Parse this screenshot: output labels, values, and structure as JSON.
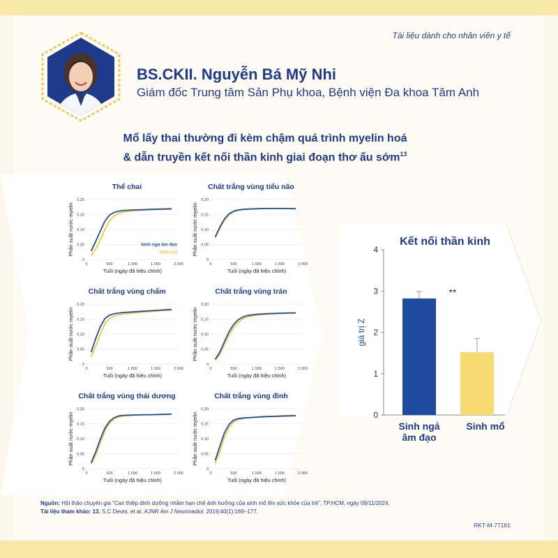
{
  "header": {
    "tagline": "Tài liệu dành cho nhân viên y tế",
    "doctor_name": "BS.CKII. Nguyễn Bá Mỹ Nhi",
    "doctor_role": "Giám đốc Trung tâm Sản Phụ khoa, Bệnh viện Đa khoa Tâm Anh",
    "headline_line1": "Mổ lấy thai thường đi kèm chậm quá trình myelin hoá",
    "headline_line2": "& dẫn truyền kết nối thần kinh giai đoạn thơ ấu sớm",
    "headline_ref": "13"
  },
  "colors": {
    "vaginal": "#1f4e9c",
    "cesarean": "#f0c93a",
    "navy": "#1e3a8a",
    "bar_vaginal": "#1f4aa0",
    "bar_cesarean": "#f7db72",
    "band": "#f8e9a8"
  },
  "chart_data": [
    {
      "type": "line",
      "title": "Thể chai",
      "xlabel": "Tuổi (ngày đã hiệu chỉnh)",
      "ylabel": "Phần suất nước myelin",
      "xlim": [
        0,
        2000
      ],
      "ylim": [
        0,
        0.2
      ],
      "xticks": [
        "0",
        "500",
        "1.000",
        "1.500",
        "2.000"
      ],
      "yticks": [
        "0",
        "0,05",
        "0,10",
        "0,15",
        "0,20"
      ],
      "x": [
        100,
        200,
        300,
        400,
        500,
        600,
        700,
        800,
        1000,
        1200,
        1400,
        1600,
        1850
      ],
      "legend": [
        "Sinh ngả âm đạo",
        "Sinh mổ"
      ],
      "series": [
        {
          "name": "Sinh ngả âm đạo",
          "values": [
            0.028,
            0.06,
            0.095,
            0.128,
            0.148,
            0.157,
            0.161,
            0.163,
            0.165,
            0.166,
            0.167,
            0.168,
            0.169
          ]
        },
        {
          "name": "Sinh mổ",
          "values": [
            0.012,
            0.035,
            0.065,
            0.1,
            0.128,
            0.145,
            0.153,
            0.158,
            0.162,
            0.164,
            0.166,
            0.167,
            0.168
          ]
        }
      ]
    },
    {
      "type": "line",
      "title": "Chất trắng vùng tiểu não",
      "xlabel": "Tuổi (ngày đã hiệu chỉnh)",
      "ylabel": "Phần suất nước myelin",
      "xlim": [
        0,
        2000
      ],
      "ylim": [
        0,
        0.2
      ],
      "xticks": [
        "0",
        "500",
        "1.000",
        "1.500",
        "2.000"
      ],
      "yticks": [
        "0",
        "0,05",
        "0,10",
        "0,15",
        "0,20"
      ],
      "x": [
        100,
        200,
        300,
        400,
        500,
        600,
        700,
        800,
        1000,
        1200,
        1400,
        1600,
        1850
      ],
      "series": [
        {
          "name": "Sinh ngả âm đạo",
          "values": [
            0.075,
            0.108,
            0.135,
            0.152,
            0.161,
            0.165,
            0.167,
            0.168,
            0.169,
            0.17,
            0.17,
            0.17,
            0.169
          ]
        },
        {
          "name": "Sinh mổ",
          "values": [
            0.072,
            0.104,
            0.131,
            0.149,
            0.159,
            0.164,
            0.166,
            0.168,
            0.169,
            0.17,
            0.17,
            0.17,
            0.169
          ]
        }
      ]
    },
    {
      "type": "line",
      "title": "Chất trắng vùng chẩm",
      "xlabel": "Tuổi (ngày đã hiệu chỉnh)",
      "ylabel": "Phần suất nước myelin",
      "xlim": [
        0,
        2000
      ],
      "ylim": [
        0,
        0.2
      ],
      "xticks": [
        "0",
        "500",
        "1.000",
        "1.500",
        "2.000"
      ],
      "yticks": [
        "0",
        "0,05",
        "0,10",
        "0,15",
        "0,20"
      ],
      "x": [
        100,
        200,
        300,
        400,
        500,
        600,
        700,
        800,
        1000,
        1200,
        1400,
        1600,
        1850
      ],
      "series": [
        {
          "name": "Sinh ngả âm đạo",
          "values": [
            0.04,
            0.085,
            0.125,
            0.152,
            0.163,
            0.168,
            0.17,
            0.172,
            0.174,
            0.176,
            0.178,
            0.18,
            0.182
          ]
        },
        {
          "name": "Sinh mổ",
          "values": [
            0.025,
            0.06,
            0.1,
            0.135,
            0.152,
            0.16,
            0.164,
            0.167,
            0.17,
            0.173,
            0.175,
            0.178,
            0.18
          ]
        }
      ]
    },
    {
      "type": "line",
      "title": "Chất trắng vùng trán",
      "xlabel": "Tuổi (ngày đã hiệu chỉnh)",
      "ylabel": "Phần suất nước myelin",
      "xlim": [
        0,
        2000
      ],
      "ylim": [
        0,
        0.2
      ],
      "xticks": [
        "0",
        "500",
        "1.000",
        "1.500",
        "2.000"
      ],
      "yticks": [
        "0",
        "0,05",
        "0,10",
        "0,15",
        "0,20"
      ],
      "x": [
        100,
        200,
        300,
        400,
        500,
        600,
        700,
        800,
        1000,
        1200,
        1400,
        1600,
        1850
      ],
      "series": [
        {
          "name": "Sinh ngả âm đạo",
          "values": [
            0.016,
            0.04,
            0.075,
            0.108,
            0.132,
            0.148,
            0.157,
            0.162,
            0.166,
            0.168,
            0.169,
            0.17,
            0.171
          ]
        },
        {
          "name": "Sinh mổ",
          "values": [
            0.012,
            0.033,
            0.065,
            0.097,
            0.122,
            0.14,
            0.151,
            0.157,
            0.163,
            0.166,
            0.168,
            0.169,
            0.17
          ]
        }
      ]
    },
    {
      "type": "line",
      "title": "Chất trắng vùng thái dương",
      "xlabel": "Tuổi (ngày đã hiệu chỉnh)",
      "ylabel": "Phần suất nước myelin",
      "xlim": [
        0,
        2000
      ],
      "ylim": [
        0,
        0.2
      ],
      "xticks": [
        "0",
        "500",
        "1.000",
        "1.500",
        "2.000"
      ],
      "yticks": [
        "0",
        "0,05",
        "0,10",
        "0,15",
        "0,20"
      ],
      "x": [
        100,
        200,
        300,
        400,
        500,
        600,
        700,
        800,
        1000,
        1200,
        1400,
        1600,
        1850
      ],
      "series": [
        {
          "name": "Sinh ngả âm đạo",
          "values": [
            0.02,
            0.055,
            0.098,
            0.135,
            0.158,
            0.17,
            0.176,
            0.178,
            0.179,
            0.18,
            0.18,
            0.181,
            0.182
          ]
        },
        {
          "name": "Sinh mổ",
          "values": [
            0.015,
            0.045,
            0.088,
            0.126,
            0.152,
            0.166,
            0.173,
            0.176,
            0.178,
            0.179,
            0.18,
            0.181,
            0.182
          ]
        }
      ]
    },
    {
      "type": "line",
      "title": "Chất trắng vùng đỉnh",
      "xlabel": "Tuổi (ngày đã hiệu chỉnh)",
      "ylabel": "Phần suất nước myelin",
      "xlim": [
        0,
        2000
      ],
      "ylim": [
        0,
        0.2
      ],
      "xticks": [
        "0",
        "500",
        "1.000",
        "1.500",
        "2.000"
      ],
      "yticks": [
        "0",
        "0,05",
        "0,10",
        "0,15",
        "0,20"
      ],
      "x": [
        100,
        200,
        300,
        400,
        500,
        600,
        700,
        800,
        1000,
        1200,
        1400,
        1600,
        1850
      ],
      "series": [
        {
          "name": "Sinh ngả âm đạo",
          "values": [
            0.028,
            0.075,
            0.12,
            0.148,
            0.162,
            0.167,
            0.169,
            0.17,
            0.172,
            0.174,
            0.175,
            0.176,
            0.177
          ]
        },
        {
          "name": "Sinh mổ",
          "values": [
            0.018,
            0.058,
            0.105,
            0.138,
            0.156,
            0.164,
            0.167,
            0.169,
            0.171,
            0.173,
            0.174,
            0.175,
            0.176
          ]
        }
      ]
    },
    {
      "type": "bar",
      "title": "Kết nối thần kinh",
      "ylabel": "giá trị Z",
      "categories": [
        "Sinh ngả âm đạo",
        "Sinh mổ"
      ],
      "values": [
        2.82,
        1.52
      ],
      "error": [
        0.17,
        0.33
      ],
      "ylim": [
        0,
        4
      ],
      "yticks": [
        "0",
        "1",
        "2",
        "3",
        "4"
      ],
      "annotation": "**"
    }
  ],
  "footer": {
    "source_label": "Nguồn:",
    "source_text": "Hội thảo chuyên gia “Can thiệp dinh dưỡng nhằm hạn chế ảnh hưởng của sinh mổ lên sức khỏe của trẻ”, TP.HCM, ngày 09/11/2024.",
    "ref_label": "Tài liệu tham khảo: 13.",
    "ref_text_pre": "S.C Deoni, et al.",
    "ref_journal": "AJNR Am J Neuroradiol.",
    "ref_text_post": "2019;40(1):169–177.",
    "code": "RKT-M-77161"
  }
}
